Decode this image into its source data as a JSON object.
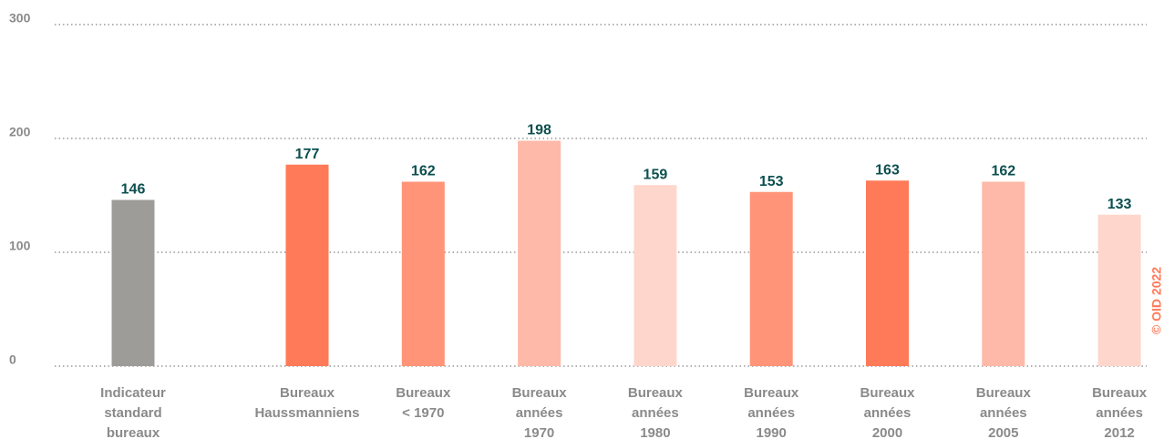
{
  "chart_data": {
    "type": "bar",
    "categories": [
      [
        "Indicateur",
        "standard",
        "bureaux"
      ],
      [
        "Bureaux",
        "Haussmanniens"
      ],
      [
        "Bureaux",
        "< 1970"
      ],
      [
        "Bureaux",
        "années",
        "1970"
      ],
      [
        "Bureaux",
        "années",
        "1980"
      ],
      [
        "Bureaux",
        "années",
        "1990"
      ],
      [
        "Bureaux",
        "années",
        "2000"
      ],
      [
        "Bureaux",
        "années",
        "2005"
      ],
      [
        "Bureaux",
        "années",
        "2012"
      ]
    ],
    "values": [
      146,
      177,
      162,
      198,
      159,
      153,
      163,
      162,
      133
    ],
    "colors": [
      "#9d9c99",
      "#ff7a59",
      "#ff9478",
      "#ffb9a8",
      "#ffd6cb",
      "#ff9478",
      "#ff7a59",
      "#ffb9a8",
      "#ffd6cb"
    ],
    "ylim": [
      0,
      300
    ],
    "yticks": [
      0,
      100,
      200,
      300
    ],
    "grid": true,
    "annotation": "© OID 2022"
  }
}
